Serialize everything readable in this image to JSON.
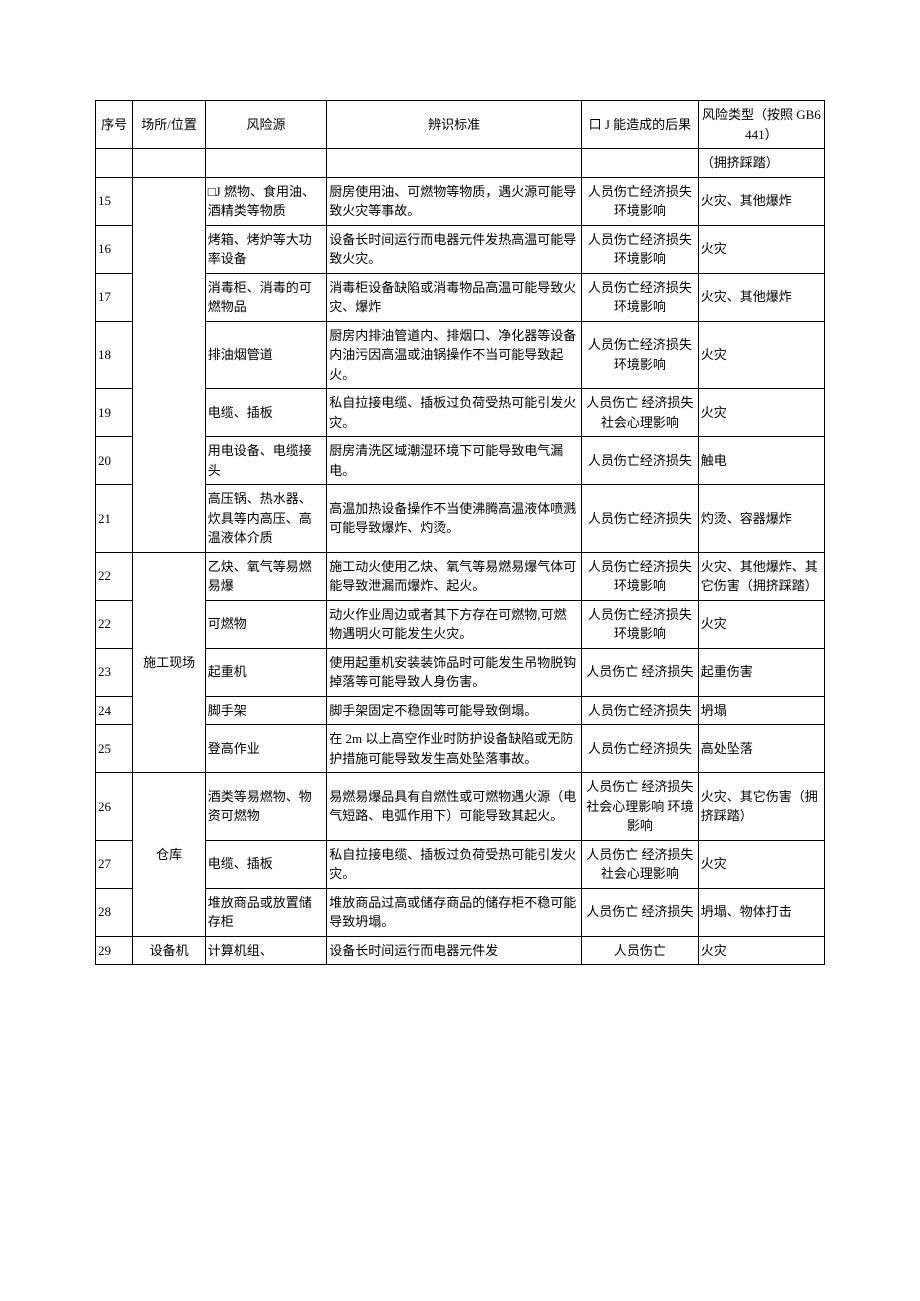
{
  "colors": {
    "background": "#ffffff",
    "text": "#000000",
    "border": "#000000"
  },
  "header": {
    "seq": "序号",
    "loc": "场所/位置",
    "src": "风险源",
    "std": "辨识标准",
    "res": "口 J 能造成的后果",
    "type": "风险类型（按照 GB6441）"
  },
  "top_trailing_type": "（拥挤踩踏）",
  "groups": [
    {
      "loc": "",
      "rows": [
        {
          "seq": "15",
          "src": "□J 燃物、食用油、酒精类等物质",
          "std": "厨房使用油、可燃物等物质，遇火源可能导致火灾等事故。",
          "res": "人员伤亡经济损失环境影响",
          "type": "火灾、其他爆炸"
        },
        {
          "seq": "16",
          "src": "烤箱、烤炉等大功率设备",
          "std": "设备长时间运行而电器元件发热高温可能导致火灾。",
          "res": "人员伤亡经济损失环境影响",
          "type": "火灾"
        },
        {
          "seq": "17",
          "src": "消毒柜、消毒的可燃物品",
          "std": "消毒柜设备缺陷或消毒物品高温可能导致火灾、爆炸",
          "res": "人员伤亡经济损失环境影响",
          "type": "火灾、其他爆炸"
        },
        {
          "seq": "18",
          "src": "排油烟管道",
          "std": "厨房内排油管道内、排烟口、净化器等设备内油污因高温或油锅操作不当可能导致起火。",
          "res": "人员伤亡经济损失环境影响",
          "type": "火灾"
        },
        {
          "seq": "19",
          "src": "电缆、插板",
          "std": "私自拉接电缆、插板过负荷受热可能引发火灾。",
          "res": "人员伤亡 经济损失 社会心理影响",
          "type": "火灾"
        },
        {
          "seq": "20",
          "src": "用电设备、电缆接头",
          "std": "厨房清洗区域潮湿环境下可能导致电气漏电。",
          "res": "人员伤亡经济损失",
          "type": "触电"
        },
        {
          "seq": "21",
          "src": "高压锅、热水器、炊具等内高压、高温液体介质",
          "std": "高温加热设备操作不当使沸腾高温液体喷溅可能导致爆炸、灼烫。",
          "res": "人员伤亡经济损失",
          "type": "灼烫、容器爆炸"
        }
      ]
    },
    {
      "loc": "施工现场",
      "rows": [
        {
          "seq": "22",
          "src": "乙炔、氧气等易燃易爆",
          "std": "施工动火使用乙炔、氧气等易燃易爆气体可能导致泄漏而爆炸、起火。",
          "res": "人员伤亡经济损失环境影响",
          "type": "火灾、其他爆炸、其它伤害（拥挤踩踏）"
        },
        {
          "seq": "22",
          "src": "可燃物",
          "std": "动火作业周边或者其下方存在可燃物,可燃物遇明火可能发生火灾。",
          "res": "人员伤亡经济损失环境影响",
          "type": "火灾"
        },
        {
          "seq": "23",
          "src": "起重机",
          "std": "使用起重机安装装饰品时可能发生吊物脱钩掉落等可能导致人身伤害。",
          "res": "人员伤亡 经济损失",
          "type": "起重伤害"
        },
        {
          "seq": "24",
          "src": "脚手架",
          "std": "脚手架固定不稳固等可能导致倒塌。",
          "res": "人员伤亡经济损失",
          "type": "坍塌"
        },
        {
          "seq": "25",
          "src": "登高作业",
          "std": "在 2m 以上高空作业时防护设备缺陷或无防护措施可能导致发生高处坠落事故。",
          "res": "人员伤亡经济损失",
          "type": "高处坠落"
        }
      ]
    },
    {
      "loc": "仓库",
      "rows": [
        {
          "seq": "26",
          "src": "酒类等易燃物、物资可燃物",
          "std": "易燃易爆品具有自燃性或可燃物遇火源（电气短路、电弧作用下）可能导致其起火。",
          "res": "人员伤亡 经济损失 社会心理影响 环境影响",
          "type": "火灾、其它伤害（拥挤踩踏）"
        },
        {
          "seq": "27",
          "src": "电缆、插板",
          "std": "私自拉接电缆、插板过负荷受热可能引发火灾。",
          "res": "人员伤亡 经济损失 社会心理影响",
          "type": "火灾"
        },
        {
          "seq": "28",
          "src": "堆放商品或放置储存柜",
          "std": "堆放商品过高或储存商品的储存柜不稳可能导致坍塌。",
          "res": "人员伤亡 经济损失",
          "type": "坍塌、物体打击"
        }
      ]
    },
    {
      "loc": "设备机",
      "rows": [
        {
          "seq": "29",
          "src": "计算机组、",
          "std": "设备长时间运行而电器元件发",
          "res": "人员伤亡",
          "type": "火灾"
        }
      ]
    }
  ]
}
